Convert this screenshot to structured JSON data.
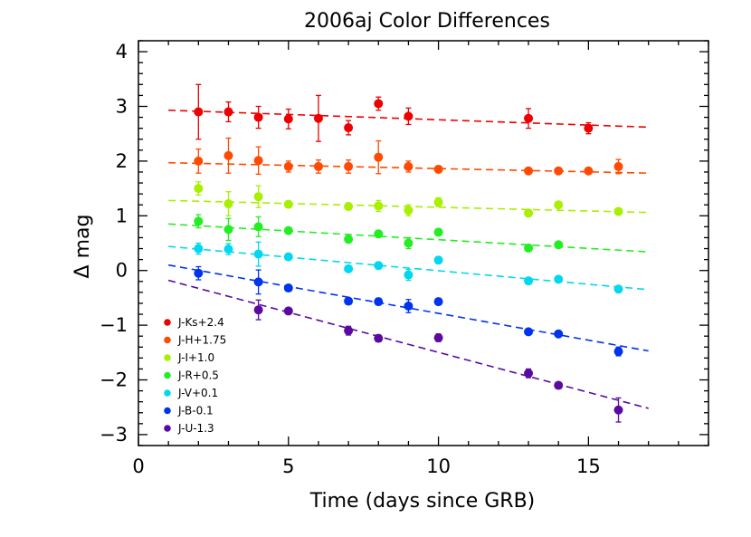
{
  "chart_data": {
    "type": "scatter",
    "title": "2006aj Color Differences",
    "xlabel": "Time (days since GRB)",
    "ylabel": "Δ mag",
    "xlim": [
      0,
      19
    ],
    "ylim": [
      -3.2,
      4.2
    ],
    "xticks": [
      0,
      5,
      10,
      15
    ],
    "yticks": [
      -3,
      -2,
      -1,
      0,
      1,
      2,
      3,
      4
    ],
    "grid": false,
    "legend_position": "bottom-left",
    "series": [
      {
        "name": "J-Ks+2.4",
        "color": "#ee0000",
        "points": [
          {
            "x": 2,
            "y": 2.9,
            "err": 0.5
          },
          {
            "x": 3,
            "y": 2.9,
            "err": 0.18
          },
          {
            "x": 4,
            "y": 2.8,
            "err": 0.2
          },
          {
            "x": 5,
            "y": 2.77,
            "err": 0.18
          },
          {
            "x": 6,
            "y": 2.78,
            "err": 0.42
          },
          {
            "x": 7,
            "y": 2.61,
            "err": 0.13
          },
          {
            "x": 8,
            "y": 3.05,
            "err": 0.12
          },
          {
            "x": 9,
            "y": 2.82,
            "err": 0.15
          },
          {
            "x": 13,
            "y": 2.78,
            "err": 0.18
          },
          {
            "x": 15,
            "y": 2.6,
            "err": 0.1
          }
        ],
        "fit": {
          "x": [
            1,
            17
          ],
          "y": [
            2.93,
            2.62
          ]
        }
      },
      {
        "name": "J-H+1.75",
        "color": "#ff4a00",
        "points": [
          {
            "x": 2,
            "y": 2.0,
            "err": 0.22
          },
          {
            "x": 3,
            "y": 2.1,
            "err": 0.32
          },
          {
            "x": 4,
            "y": 2.01,
            "err": 0.25
          },
          {
            "x": 5,
            "y": 1.9,
            "err": 0.1
          },
          {
            "x": 6,
            "y": 1.9,
            "err": 0.12
          },
          {
            "x": 7,
            "y": 1.9,
            "err": 0.12
          },
          {
            "x": 8,
            "y": 2.07,
            "err": 0.3
          },
          {
            "x": 9,
            "y": 1.9,
            "err": 0.1
          },
          {
            "x": 10,
            "y": 1.85,
            "err": 0.06
          },
          {
            "x": 13,
            "y": 1.82,
            "err": 0.04
          },
          {
            "x": 14,
            "y": 1.82,
            "err": 0.04
          },
          {
            "x": 15,
            "y": 1.82,
            "err": 0.04
          },
          {
            "x": 16,
            "y": 1.9,
            "err": 0.13
          }
        ],
        "fit": {
          "x": [
            1,
            17
          ],
          "y": [
            1.97,
            1.78
          ]
        }
      },
      {
        "name": "J-I+1.0",
        "color": "#a8f000",
        "points": [
          {
            "x": 2,
            "y": 1.5,
            "err": 0.12
          },
          {
            "x": 3,
            "y": 1.22,
            "err": 0.22
          },
          {
            "x": 4,
            "y": 1.35,
            "err": 0.2
          },
          {
            "x": 5,
            "y": 1.21,
            "err": 0.06
          },
          {
            "x": 7,
            "y": 1.17,
            "err": 0.06
          },
          {
            "x": 8,
            "y": 1.18,
            "err": 0.1
          },
          {
            "x": 9,
            "y": 1.1,
            "err": 0.1
          },
          {
            "x": 10,
            "y": 1.25,
            "err": 0.08
          },
          {
            "x": 13,
            "y": 1.05,
            "err": 0.06
          },
          {
            "x": 14,
            "y": 1.2,
            "err": 0.05
          },
          {
            "x": 16,
            "y": 1.08,
            "err": 0.04
          }
        ],
        "fit": {
          "x": [
            1,
            17
          ],
          "y": [
            1.28,
            1.06
          ]
        }
      },
      {
        "name": "J-R+0.5",
        "color": "#22ee22",
        "points": [
          {
            "x": 2,
            "y": 0.9,
            "err": 0.12
          },
          {
            "x": 3,
            "y": 0.75,
            "err": 0.2
          },
          {
            "x": 4,
            "y": 0.8,
            "err": 0.18
          },
          {
            "x": 5,
            "y": 0.73,
            "err": 0.05
          },
          {
            "x": 7,
            "y": 0.57,
            "err": 0.05
          },
          {
            "x": 8,
            "y": 0.67,
            "err": 0.06
          },
          {
            "x": 9,
            "y": 0.5,
            "err": 0.1
          },
          {
            "x": 10,
            "y": 0.7,
            "err": 0.06
          },
          {
            "x": 13,
            "y": 0.41,
            "err": 0.05
          },
          {
            "x": 14,
            "y": 0.47,
            "err": 0.05
          }
        ],
        "fit": {
          "x": [
            1,
            17
          ],
          "y": [
            0.85,
            0.34
          ]
        }
      },
      {
        "name": "J-V+0.1",
        "color": "#00d8f0",
        "points": [
          {
            "x": 2,
            "y": 0.4,
            "err": 0.1
          },
          {
            "x": 3,
            "y": 0.39,
            "err": 0.1
          },
          {
            "x": 4,
            "y": 0.3,
            "err": 0.22
          },
          {
            "x": 5,
            "y": 0.25,
            "err": 0.05
          },
          {
            "x": 7,
            "y": 0.03,
            "err": 0.05
          },
          {
            "x": 8,
            "y": 0.09,
            "err": 0.06
          },
          {
            "x": 9,
            "y": -0.08,
            "err": 0.1
          },
          {
            "x": 10,
            "y": 0.19,
            "err": 0.06
          },
          {
            "x": 13,
            "y": -0.19,
            "err": 0.05
          },
          {
            "x": 14,
            "y": -0.16,
            "err": 0.05
          },
          {
            "x": 16,
            "y": -0.34,
            "err": 0.05
          }
        ],
        "fit": {
          "x": [
            1,
            17
          ],
          "y": [
            0.44,
            -0.35
          ]
        }
      },
      {
        "name": "J-B-0.1",
        "color": "#0033ee",
        "points": [
          {
            "x": 2,
            "y": -0.05,
            "err": 0.12
          },
          {
            "x": 4,
            "y": -0.21,
            "err": 0.22
          },
          {
            "x": 5,
            "y": -0.32,
            "err": 0.05
          },
          {
            "x": 7,
            "y": -0.56,
            "err": 0.05
          },
          {
            "x": 8,
            "y": -0.57,
            "err": 0.06
          },
          {
            "x": 9,
            "y": -0.65,
            "err": 0.12
          },
          {
            "x": 10,
            "y": -0.57,
            "err": 0.06
          },
          {
            "x": 13,
            "y": -1.12,
            "err": 0.05
          },
          {
            "x": 14,
            "y": -1.16,
            "err": 0.05
          },
          {
            "x": 16,
            "y": -1.48,
            "err": 0.08
          }
        ],
        "fit": {
          "x": [
            1,
            17
          ],
          "y": [
            0.1,
            -1.47
          ]
        }
      },
      {
        "name": "J-U-1.3",
        "color": "#5a0aa0",
        "points": [
          {
            "x": 4,
            "y": -0.72,
            "err": 0.18
          },
          {
            "x": 5,
            "y": -0.74,
            "err": 0.05
          },
          {
            "x": 7,
            "y": -1.1,
            "err": 0.08
          },
          {
            "x": 8,
            "y": -1.24,
            "err": 0.06
          },
          {
            "x": 10,
            "y": -1.23,
            "err": 0.07
          },
          {
            "x": 13,
            "y": -1.88,
            "err": 0.08
          },
          {
            "x": 14,
            "y": -2.1,
            "err": 0.05
          },
          {
            "x": 16,
            "y": -2.55,
            "err": 0.22
          }
        ],
        "fit": {
          "x": [
            1,
            17
          ],
          "y": [
            -0.18,
            -2.52
          ]
        }
      }
    ]
  }
}
